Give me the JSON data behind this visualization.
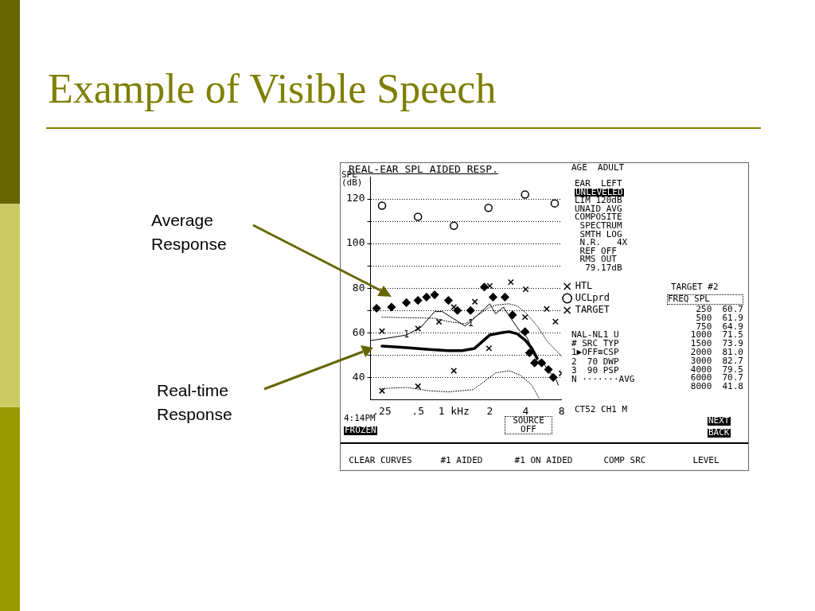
{
  "chart_data": {
    "type": "scatter",
    "title": "Example of Visible Speech",
    "subtitle": "REAL-EAR SPL AIDED RESP.",
    "ylabel": "SPL (dB)",
    "log": "x",
    "xlim": [
      0.2,
      8
    ],
    "xticks": [
      {
        "value": 0.25,
        "label": ".25"
      },
      {
        "value": 0.5,
        "label": ".5"
      },
      {
        "value": 1,
        "label": "1 kHz"
      },
      2,
      4,
      8
    ],
    "ylim": [
      30,
      130
    ],
    "yticks": [
      40,
      {
        "value": 50,
        "label": null
      },
      60,
      {
        "value": 70,
        "label": null
      },
      80,
      {
        "value": 90,
        "label": null
      },
      100,
      {
        "value": 110,
        "label": null
      },
      120
    ],
    "grid": "y",
    "legend": "right",
    "series": [
      {
        "name": "HTL",
        "marker": "cross",
        "color": "#000000",
        "x": [
          0.25,
          0.5,
          1.0,
          1.97,
          3.95,
          7.1
        ],
        "values": [
          34,
          36,
          43,
          53,
          67,
          65
        ]
      },
      {
        "name": "UCLprd",
        "marker": "circle",
        "color": "#000000",
        "x": [
          0.25,
          0.5,
          1.0,
          1.95,
          3.95,
          7.0
        ],
        "values": [
          117,
          112,
          108,
          116,
          122,
          118
        ]
      },
      {
        "name": "TARGET",
        "marker": "cross",
        "color": "#000000",
        "x": [
          0.25,
          0.5,
          0.75,
          1,
          1.5,
          2,
          3,
          4,
          6,
          8
        ],
        "values": [
          60.7,
          61.9,
          64.9,
          71.5,
          73.9,
          81.0,
          82.7,
          79.5,
          70.7,
          41.8
        ]
      },
      {
        "marker": "diamond",
        "color": "#000000",
        "x": [
          0.225,
          0.3,
          0.4,
          0.5,
          0.59,
          0.69,
          0.9,
          1.07,
          1.38,
          1.8,
          2.13,
          2.68,
          3.1,
          3.95,
          4.3,
          4.75,
          5.45,
          6.2,
          6.8
        ],
        "values": [
          71,
          71.5,
          73.5,
          74.5,
          76,
          77,
          74.5,
          70,
          70,
          80.5,
          76,
          76,
          68,
          60.5,
          51,
          46.5,
          46.5,
          43.5,
          40
        ]
      },
      {
        "type": "line",
        "marker": "none",
        "line_style": "solid",
        "color": "#000000",
        "x": [
          0.25,
          0.36,
          0.62,
          0.9,
          1.17,
          1.49,
          2.0,
          2.5,
          2.9,
          3.4,
          4.0,
          4.5,
          5.0
        ],
        "values": [
          54,
          53.5,
          52.5,
          52,
          52,
          53,
          59,
          60,
          60.5,
          59.5,
          56.5,
          53,
          48.5
        ]
      },
      {
        "type": "line",
        "marker": "none",
        "line_style": "solid",
        "color": "#000000",
        "x": [
          0.2,
          0.31,
          0.4,
          0.53,
          0.69,
          0.8,
          1.05,
          1.24,
          1.38,
          2.0,
          2.24,
          2.6,
          3.0,
          3.6,
          4.1,
          4.5,
          5.0,
          5.4,
          6.1,
          7.2,
          7.5
        ],
        "values": [
          56.5,
          58,
          59,
          62.5,
          69.5,
          69.5,
          65.5,
          63,
          65,
          73,
          68.5,
          71.5,
          66.5,
          60.5,
          58,
          53,
          47,
          48,
          43.5,
          39,
          36.5
        ]
      },
      {
        "type": "line",
        "marker": "none",
        "line_style": "dotted",
        "color": "#000000",
        "x": [
          0.25,
          0.69,
          0.9,
          1.24,
          1.5,
          2.0,
          2.3,
          2.9,
          3.4,
          4.0,
          5.0,
          6.1,
          8
        ],
        "values": [
          67,
          66.5,
          65,
          64,
          67,
          71.5,
          72.5,
          73,
          72,
          69,
          63,
          56,
          49.5
        ]
      },
      {
        "type": "line",
        "marker": "none",
        "line_style": "dotted",
        "color": "#000000",
        "x": [
          0.25,
          0.4,
          0.62,
          0.9,
          1.45,
          2.0,
          2.24,
          2.9,
          3.6,
          4.5,
          5.2
        ],
        "values": [
          35,
          35.5,
          34,
          33.5,
          34.5,
          40,
          42,
          43,
          41,
          36.5,
          30.5
        ]
      }
    ],
    "annotations": [
      "Average Response",
      "Real-time Response",
      "AGE  ADULT",
      "EAR  LEFT",
      "UNLEVELED",
      "LIM 120dB",
      "UNAID AVG",
      "COMPOSITE",
      " SPECTRUM",
      " SMTH LOG",
      " N.R.   4X",
      " REF OFF",
      " RMS OUT",
      "  79.17dB",
      "NAL-NL1 U",
      "# SRC TYP",
      "1▶OFF≡CSP",
      "2  70 DWP",
      "3  90 PSP",
      "N ·······AVG",
      "CT52 CH1 M",
      "TARGET #2",
      "FREQ  SPL",
      " 250  60.7",
      " 500  61.9",
      " 750  64.9",
      "1000  71.5",
      "1500  73.9",
      "2000  81.0",
      "3000  82.7",
      "4000  79.5",
      "6000  70.7",
      "8000  41.8",
      "NEXT",
      "BACK",
      "4:14PM",
      "FROZEN",
      "SOURCE OFF",
      "CLEAR CURVES",
      "#1 AIDED",
      "#1 ON AIDED",
      "COMP SRC",
      "LEVEL",
      {
        "text": "1",
        "x": 0.4,
        "y": 59
      },
      {
        "text": "1",
        "x": 1.38,
        "y": 64
      }
    ]
  }
}
